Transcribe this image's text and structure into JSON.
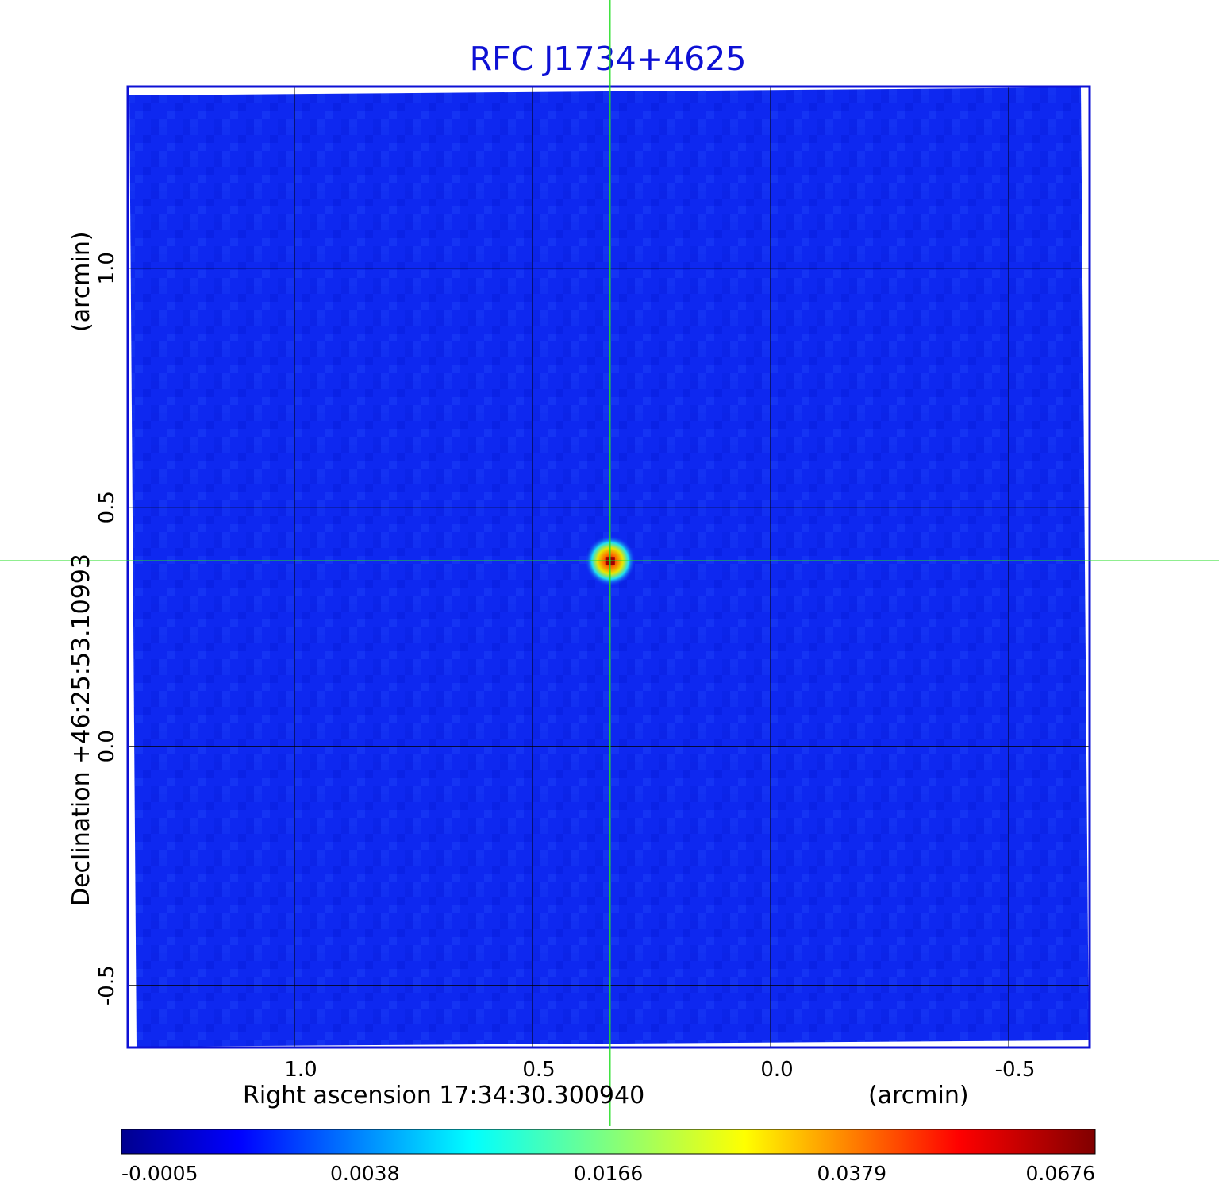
{
  "chart_data": {
    "type": "heatmap",
    "title": "RFC J1734+4625",
    "xlabel": "Right ascension  17:34:30.300940",
    "xunit": "(arcmin)",
    "ylabel": "Declination  +46:25:53.10993",
    "yunit": "(arcmin)",
    "xlim": [
      1.35,
      -0.67
    ],
    "ylim": [
      -0.63,
      1.38
    ],
    "x_ticks": [
      {
        "value": 1.0,
        "label": "1.0"
      },
      {
        "value": 0.5,
        "label": "0.5"
      },
      {
        "value": 0.0,
        "label": "0.0"
      },
      {
        "value": -0.5,
        "label": "-0.5"
      }
    ],
    "y_ticks": [
      {
        "value": 1.0,
        "label": "1.0"
      },
      {
        "value": 0.5,
        "label": "0.5"
      },
      {
        "value": 0.0,
        "label": "0.0"
      },
      {
        "value": -0.5,
        "label": "-0.5"
      }
    ],
    "grid": true,
    "crosshair": {
      "x": 0.337,
      "y": 0.388
    },
    "source_peak": {
      "x": 0.337,
      "y": 0.388,
      "value": 0.0676
    },
    "colorbar": {
      "colormap": "jet",
      "ticks": [
        "-0.0005",
        "0.0038",
        "0.0166",
        "0.0379",
        "0.0676"
      ]
    }
  },
  "colors": {
    "title": "#0d10d4",
    "frame": "#0d10d4",
    "crosshair": "#22dd22",
    "background_map": "#0e28f0"
  }
}
